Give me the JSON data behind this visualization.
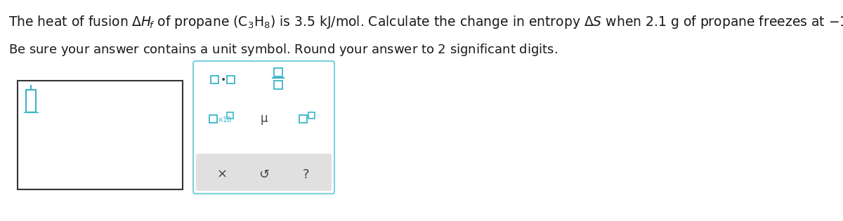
{
  "bg_color": "#ffffff",
  "text_color": "#1a1a1a",
  "font_size_main": 13.5,
  "font_size_secondary": 13.0,
  "accent_color": "#3ab5c8",
  "box_border_color": "#333333",
  "right_box_border": "#7ecfe0",
  "grey_bar_color": "#e0e0e0"
}
